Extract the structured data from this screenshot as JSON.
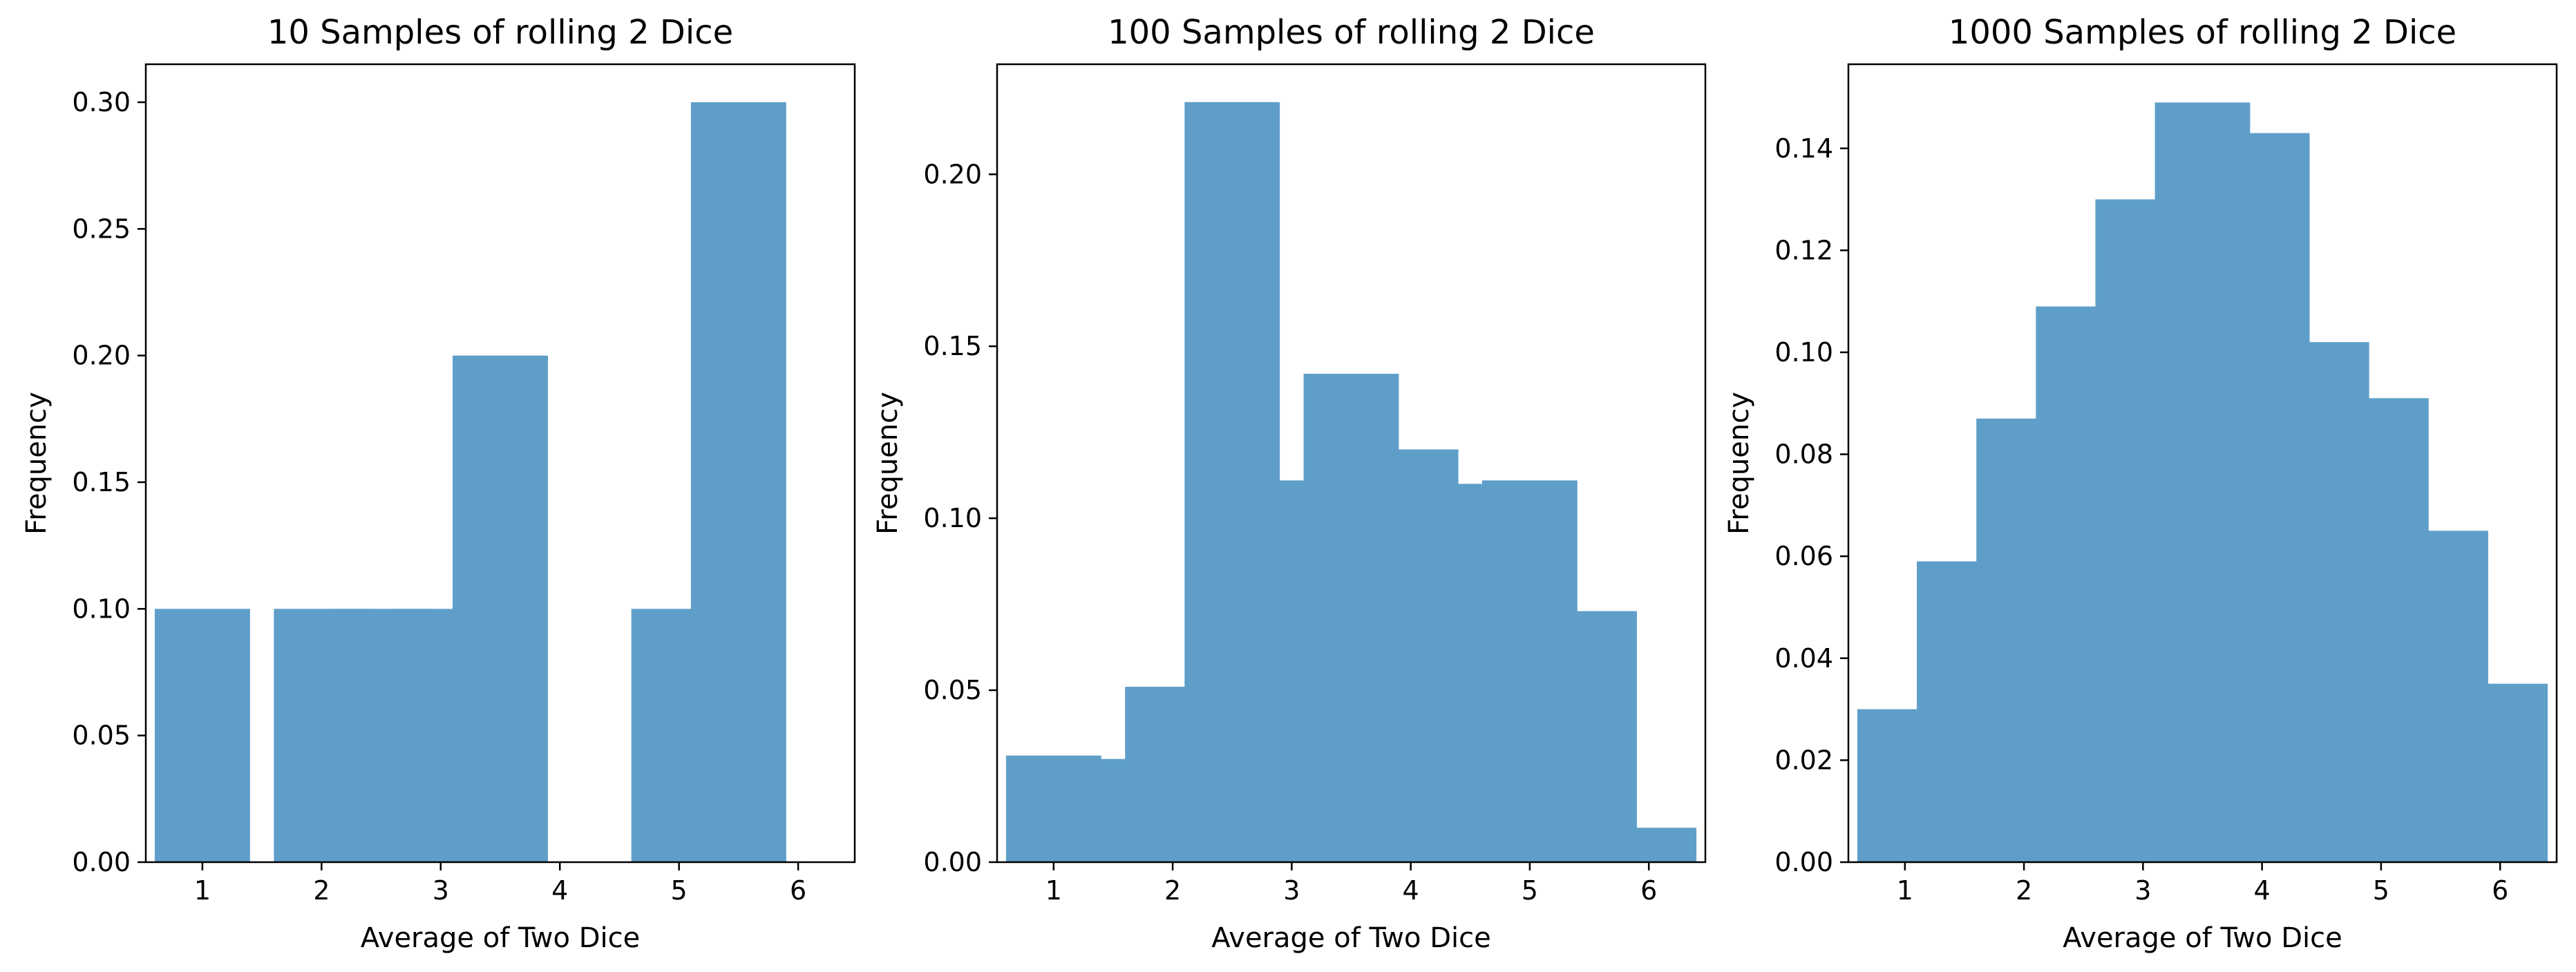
{
  "chart_data": [
    {
      "type": "bar",
      "title": "10 Samples of rolling 2 Dice",
      "xlabel": "Average of Two Dice",
      "ylabel": "Frequency",
      "categories": [
        1,
        1.5,
        2,
        2.5,
        3,
        3.5,
        4,
        4.5,
        5,
        5.5,
        6
      ],
      "values": [
        0.1,
        0.0,
        0.1,
        0.1,
        0.1,
        0.2,
        0.0,
        0.0,
        0.1,
        0.3,
        0.0
      ],
      "xlim": [
        0.525,
        6.475
      ],
      "ylim": [
        0,
        0.315
      ],
      "xticks": [
        1,
        2,
        3,
        4,
        5,
        6
      ],
      "yticks": [
        0.0,
        0.05,
        0.1,
        0.15,
        0.2,
        0.25,
        0.3
      ],
      "ytick_labels": [
        "0.00",
        "0.05",
        "0.10",
        "0.15",
        "0.20",
        "0.25",
        "0.30"
      ],
      "bar_color": "#5f9ec9",
      "grid": false
    },
    {
      "type": "bar",
      "title": "100 Samples of rolling 2 Dice",
      "xlabel": "Average of Two Dice",
      "ylabel": "Frequency",
      "categories": [
        1,
        1.5,
        2,
        2.5,
        3,
        3.5,
        4,
        4.5,
        5,
        5.5,
        6
      ],
      "values": [
        0.031,
        0.03,
        0.051,
        0.221,
        0.111,
        0.142,
        0.12,
        0.11,
        0.111,
        0.073,
        0.01
      ],
      "xlim": [
        0.525,
        6.475
      ],
      "ylim": [
        0,
        0.232
      ],
      "xticks": [
        1,
        2,
        3,
        4,
        5,
        6
      ],
      "yticks": [
        0.0,
        0.05,
        0.1,
        0.15,
        0.2
      ],
      "ytick_labels": [
        "0.00",
        "0.05",
        "0.10",
        "0.15",
        "0.20"
      ],
      "bar_color": "#5f9ec9",
      "grid": false
    },
    {
      "type": "bar",
      "title": "1000 Samples of rolling 2 Dice",
      "xlabel": "Average of Two Dice",
      "ylabel": "Frequency",
      "categories": [
        1,
        1.5,
        2,
        2.5,
        3,
        3.5,
        4,
        4.5,
        5,
        5.5,
        6
      ],
      "values": [
        0.03,
        0.059,
        0.087,
        0.109,
        0.13,
        0.149,
        0.143,
        0.102,
        0.091,
        0.065,
        0.035
      ],
      "xlim": [
        0.525,
        6.475
      ],
      "ylim": [
        0,
        0.1565
      ],
      "xticks": [
        1,
        2,
        3,
        4,
        5,
        6
      ],
      "yticks": [
        0.0,
        0.02,
        0.04,
        0.06,
        0.08,
        0.1,
        0.12,
        0.14
      ],
      "ytick_labels": [
        "0.00",
        "0.02",
        "0.04",
        "0.06",
        "0.08",
        "0.10",
        "0.12",
        "0.14"
      ],
      "bar_color": "#5f9ec9",
      "grid": false
    }
  ]
}
